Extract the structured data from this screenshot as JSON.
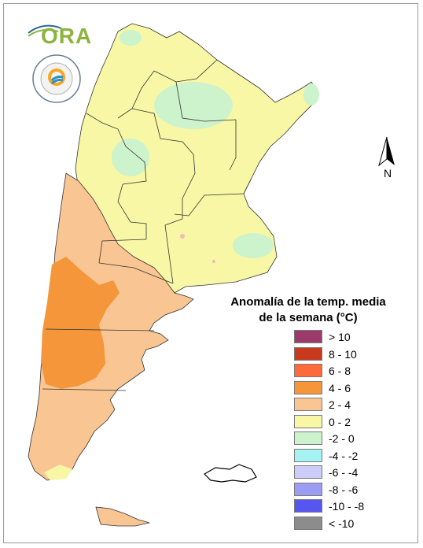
{
  "logo": {
    "text": "ORA"
  },
  "seal": {
    "text": "SERVICIO METEOROLÓGICO NACIONAL",
    "country": "ARGENTINA"
  },
  "north_arrow": {
    "label": "N"
  },
  "legend": {
    "title_line1": "Anomalía de la temp. media",
    "title_line2": "de la semana (°C)",
    "items": [
      {
        "label": "> 10",
        "color": "#9c3a6b"
      },
      {
        "label": "8 - 10",
        "color": "#c83a1e"
      },
      {
        "label": "6 - 8",
        "color": "#ff6a3a"
      },
      {
        "label": "4 - 6",
        "color": "#f5963a"
      },
      {
        "label": "2 - 4",
        "color": "#f8c593"
      },
      {
        "label": "0 - 2",
        "color": "#f8f7a6"
      },
      {
        "label": "-2 - 0",
        "color": "#ccf3cc"
      },
      {
        "label": "-4 - -2",
        "color": "#a6f3f3"
      },
      {
        "label": "-6 - -4",
        "color": "#ccccf8"
      },
      {
        "label": "-8 - -6",
        "color": "#9c9cf3"
      },
      {
        "label": "-10 - -8",
        "color": "#5656f0"
      },
      {
        "label": "< -10",
        "color": "#8c8c8c"
      }
    ]
  }
}
